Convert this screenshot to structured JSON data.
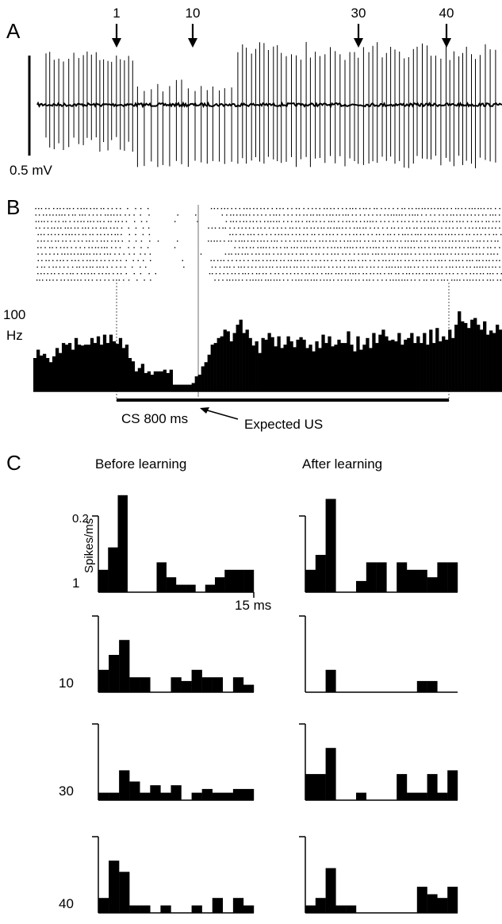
{
  "panels": [
    {
      "id": "A",
      "label": "A"
    },
    {
      "id": "B",
      "label": "B"
    },
    {
      "id": "C",
      "label": "C"
    }
  ],
  "chart_data": [
    {
      "type": "line",
      "panel": "A",
      "scale_bar_label": "0.5 mV",
      "trial_markers": [
        {
          "label": "1",
          "time": 147
        },
        {
          "label": "10",
          "time": 243
        },
        {
          "label": "30",
          "time": 452
        },
        {
          "label": "40",
          "time": 563
        }
      ]
    },
    {
      "type": "bar",
      "panel": "B",
      "ylabel_value": "100",
      "ylabel_unit": "Hz",
      "ylim": [
        0,
        100
      ],
      "cs_label": "CS 800 ms",
      "us_label": "Expected US",
      "values": [
        40,
        50,
        43,
        45,
        40,
        35,
        42,
        52,
        46,
        58,
        56,
        58,
        50,
        64,
        56,
        55,
        56,
        56,
        64,
        58,
        66,
        56,
        68,
        58,
        68,
        60,
        57,
        64,
        52,
        56,
        40,
        36,
        24,
        28,
        33,
        22,
        24,
        20,
        24,
        24,
        24,
        26,
        22,
        26,
        8,
        8,
        8,
        8,
        8,
        8,
        10,
        18,
        20,
        30,
        35,
        44,
        56,
        58,
        64,
        66,
        74,
        72,
        60,
        70,
        80,
        86,
        70,
        74,
        64,
        55,
        60,
        46,
        64,
        62,
        70,
        65,
        54,
        66,
        52,
        56,
        66,
        60,
        53,
        62,
        65,
        62,
        52,
        56,
        48,
        60,
        52,
        68,
        58,
        66,
        54,
        56,
        62,
        58,
        58,
        72,
        56,
        48,
        66,
        50,
        56,
        64,
        52,
        70,
        58,
        68,
        74,
        66,
        61,
        62,
        60,
        70,
        56,
        62,
        64,
        70,
        58,
        66,
        58,
        70,
        56,
        74,
        58,
        76,
        60,
        66,
        62,
        74,
        64,
        80,
        96,
        84,
        82,
        76,
        86,
        88,
        80,
        74,
        84,
        68,
        73,
        70,
        80,
        74
      ]
    },
    {
      "type": "bar",
      "panel": "C",
      "column_titles": [
        "Before learning",
        "After learning"
      ],
      "ylabel": "Spikes/ms",
      "y_tick_label": "0.2",
      "ylim": [
        0,
        0.2
      ],
      "x_tick_label": "15 ms",
      "xlim": [
        0,
        15
      ],
      "rows": [
        {
          "trial": "1",
          "before": [
            0.06,
            0.12,
            0.26,
            0,
            0,
            0,
            0.08,
            0.04,
            0.02,
            0.02,
            0,
            0.02,
            0.04,
            0.06,
            0.06,
            0.06
          ],
          "after": [
            0.06,
            0.1,
            0.25,
            0,
            0,
            0.03,
            0.08,
            0.08,
            0,
            0.08,
            0.06,
            0.06,
            0.04,
            0.08,
            0.08
          ]
        },
        {
          "trial": "10",
          "before": [
            0.06,
            0.1,
            0.14,
            0.04,
            0.04,
            0,
            0,
            0.04,
            0.03,
            0.06,
            0.04,
            0.04,
            0,
            0.04,
            0.02
          ],
          "after": [
            0,
            0,
            0.06,
            0,
            0,
            0,
            0,
            0,
            0,
            0,
            0,
            0.03,
            0.03,
            0,
            0
          ]
        },
        {
          "trial": "30",
          "before": [
            0.02,
            0.02,
            0.08,
            0.05,
            0.02,
            0.04,
            0.02,
            0.04,
            0,
            0.02,
            0.03,
            0.02,
            0.02,
            0.03,
            0.03
          ],
          "after": [
            0.07,
            0.07,
            0.14,
            0,
            0,
            0.02,
            0,
            0,
            0,
            0.07,
            0.02,
            0.02,
            0.07,
            0.02,
            0.08
          ]
        },
        {
          "trial": "40",
          "before": [
            0.04,
            0.14,
            0.11,
            0.02,
            0.02,
            0,
            0.02,
            0,
            0,
            0.02,
            0,
            0.04,
            0,
            0.04,
            0.02
          ],
          "after": [
            0.02,
            0.04,
            0.12,
            0.02,
            0.02,
            0,
            0,
            0,
            0,
            0,
            0,
            0.07,
            0.05,
            0.04,
            0.07
          ]
        }
      ]
    }
  ]
}
